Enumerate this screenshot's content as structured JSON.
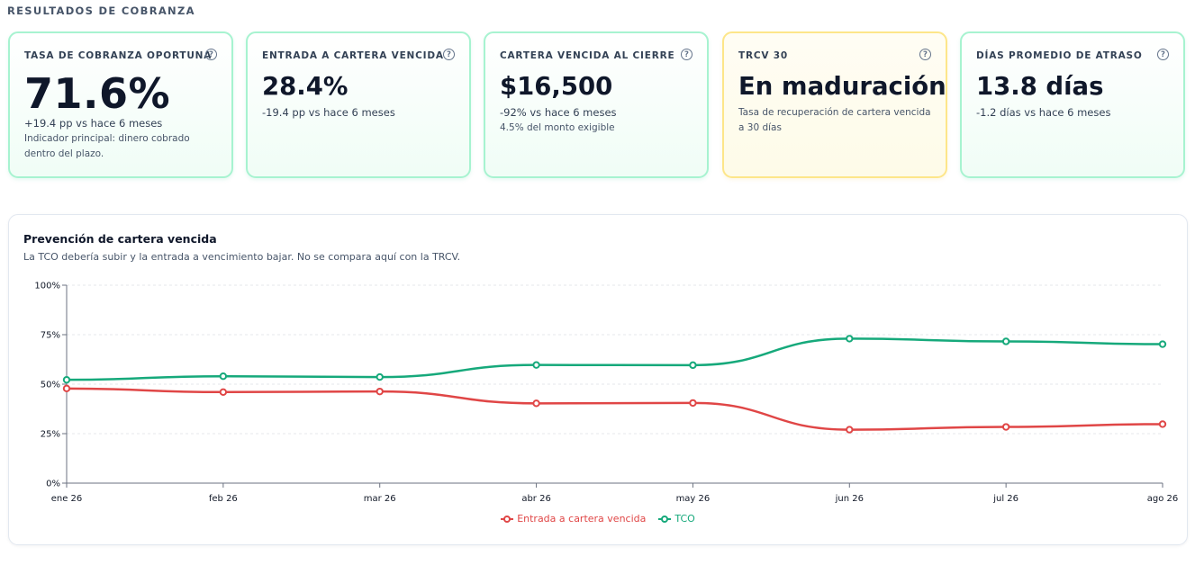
{
  "section_title": "RESULTADOS DE COBRANZA",
  "kpis": [
    {
      "label": "TASA DE COBRANZA OPORTUNA",
      "value": "71.6%",
      "change": "+19.4 pp vs hace 6 meses",
      "note": "Indicador principal: dinero cobrado dentro del plazo."
    },
    {
      "label": "ENTRADA A CARTERA VENCIDA",
      "value": "28.4%",
      "change": "-19.4 pp vs hace 6 meses"
    },
    {
      "label": "CARTERA VENCIDA AL CIERRE",
      "value": "$16,500",
      "change": "-92% vs hace 6 meses",
      "note": "4.5% del monto exigible"
    },
    {
      "label": "TRCV 30",
      "value": "En maduración",
      "note": "Tasa de recuperación de cartera vencida a 30 días"
    },
    {
      "label": "DÍAS PROMEDIO DE ATRASO",
      "value": "13.8 días",
      "change": "-1.2 días vs hace 6 meses"
    }
  ],
  "help_glyph": "?",
  "colors": {
    "good_border": "#a7f3d0",
    "warn_border": "#fde68a",
    "entrada": "#e04646",
    "tco": "#16a97b"
  },
  "chart": {
    "title": "Prevención de cartera vencida",
    "subtitle": "La TCO debería subir y la entrada a vencimiento bajar. No se compara aquí con la TRCV."
  },
  "chart_data": {
    "type": "line",
    "categories": [
      "ene 26",
      "feb 26",
      "mar 26",
      "abr 26",
      "may 26",
      "jun 26",
      "jul 26",
      "ago 26"
    ],
    "y_ticks": [
      "0%",
      "25%",
      "50%",
      "75%",
      "100%"
    ],
    "ylim": [
      0,
      100
    ],
    "grid": true,
    "legend_position": "bottom",
    "series": [
      {
        "name": "Entrada a cartera vencida",
        "color": "#e04646",
        "values": [
          47.8,
          46.0,
          46.3,
          40.3,
          40.5,
          27.0,
          28.4,
          29.8
        ]
      },
      {
        "name": "TCO",
        "color": "#16a97b",
        "values": [
          52.2,
          54.0,
          53.6,
          59.7,
          59.6,
          73.0,
          71.6,
          70.2
        ]
      }
    ]
  }
}
